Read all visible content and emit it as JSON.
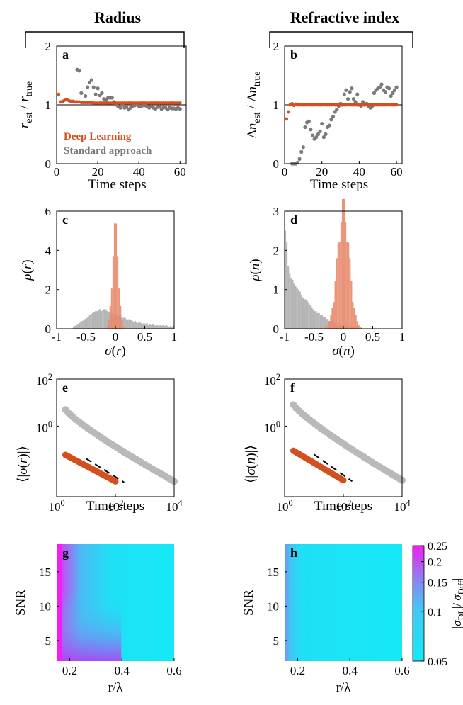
{
  "column_titles": {
    "left": "Radius",
    "right": "Refractive index"
  },
  "colors": {
    "deep_learning": "#d2501e",
    "deep_learning_hist": "#e8896b",
    "standard": "#7a7a7a",
    "standard_light": "#b9b9b9",
    "standard_hist": "#a8a8a8",
    "heat_low": "#16e9f5",
    "heat_high": "#f21ef2"
  },
  "chart_data": [
    {
      "panel": "a",
      "type": "scatter",
      "xlabel": "Time steps",
      "ylabel": "r_est / r_true",
      "xlim": [
        0,
        60
      ],
      "ylim": [
        0,
        2
      ],
      "xticks": [
        "0",
        "20",
        "40",
        "60"
      ],
      "yticks": [
        "0",
        "1",
        "2"
      ],
      "legend": {
        "placement": "bottom-left",
        "entries": [
          "Deep Learning",
          "Standard approach"
        ]
      },
      "series": [
        {
          "name": "Deep Learning",
          "x": [
            1,
            2,
            3,
            4,
            5,
            6,
            7,
            8,
            9,
            10,
            11,
            12,
            13,
            14,
            15,
            16,
            17,
            18,
            19,
            20,
            21,
            22,
            23,
            24,
            25,
            26,
            27,
            28,
            29,
            30,
            31,
            32,
            33,
            34,
            35,
            36,
            37,
            38,
            39,
            40,
            41,
            42,
            43,
            44,
            45,
            46,
            47,
            48,
            49,
            50,
            51,
            52,
            53,
            54,
            55,
            56,
            57,
            58,
            59,
            60
          ],
          "y": [
            1.18,
            1.05,
            1.06,
            1.08,
            1.09,
            1.07,
            1.06,
            1.06,
            1.05,
            1.05,
            1.05,
            1.04,
            1.04,
            1.04,
            1.04,
            1.04,
            1.04,
            1.03,
            1.03,
            1.03,
            1.03,
            1.03,
            1.03,
            1.03,
            1.03,
            1.03,
            1.03,
            1.03,
            1.03,
            1.03,
            1.03,
            1.03,
            1.03,
            1.03,
            1.03,
            1.03,
            1.03,
            1.03,
            1.03,
            1.03,
            1.03,
            1.03,
            1.03,
            1.03,
            1.03,
            1.03,
            1.03,
            1.03,
            1.03,
            1.03,
            1.03,
            1.03,
            1.03,
            1.03,
            1.03,
            1.03,
            1.03,
            1.03,
            1.03,
            1.03
          ]
        },
        {
          "name": "Standard approach",
          "x": [
            10,
            11,
            12,
            14,
            15,
            16,
            17,
            18,
            19,
            20,
            21,
            22,
            23,
            24,
            25,
            26,
            27,
            28,
            29,
            30,
            31,
            32,
            33,
            34,
            35,
            36,
            37,
            38,
            39,
            40,
            41,
            42,
            43,
            44,
            45,
            46,
            47,
            48,
            49,
            50,
            51,
            52,
            53,
            54,
            55,
            56,
            57,
            58,
            59,
            60
          ],
          "y": [
            1.6,
            1.58,
            1.2,
            1.15,
            1.3,
            1.38,
            1.42,
            1.3,
            1.18,
            1.28,
            1.16,
            1.2,
            1.1,
            1.08,
            1.12,
            1.12,
            1.12,
            1.05,
            1.0,
            0.97,
            0.95,
            1.0,
            0.95,
            0.96,
            0.92,
            0.95,
            0.98,
            0.99,
            1.02,
            0.98,
            0.97,
            0.99,
            0.99,
            0.97,
            0.95,
            0.97,
            0.95,
            0.93,
            0.96,
            0.97,
            0.93,
            0.96,
            0.95,
            0.92,
            0.95,
            0.94,
            0.94,
            0.93,
            0.95,
            0.93
          ]
        }
      ]
    },
    {
      "panel": "b",
      "type": "scatter",
      "xlabel": "Time steps",
      "ylabel": "Δn_est / Δn_true",
      "xlim": [
        0,
        60
      ],
      "ylim": [
        0,
        2
      ],
      "xticks": [
        "0",
        "20",
        "40",
        "60"
      ],
      "yticks": [
        "0",
        "1",
        "2"
      ],
      "series": [
        {
          "name": "Deep Learning",
          "x": [
            1,
            2,
            3,
            4,
            5,
            6,
            7,
            8,
            9,
            10,
            11,
            12,
            13,
            14,
            15,
            16,
            17,
            18,
            19,
            20,
            21,
            22,
            23,
            24,
            25,
            26,
            27,
            28,
            29,
            30,
            31,
            32,
            33,
            34,
            35,
            36,
            37,
            38,
            39,
            40,
            41,
            42,
            43,
            44,
            45,
            46,
            47,
            48,
            49,
            50,
            51,
            52,
            53,
            54,
            55,
            56,
            57,
            58,
            59,
            60
          ],
          "y": [
            0.76,
            0.88,
            1.0,
            1.02,
            0.99,
            1.01,
            1.0,
            1.0,
            1.0,
            1.0,
            1.0,
            1.0,
            1.0,
            1.0,
            1.0,
            1.0,
            1.0,
            1.0,
            1.0,
            1.0,
            1.0,
            1.0,
            1.0,
            1.0,
            1.0,
            1.0,
            1.0,
            1.0,
            1.0,
            1.0,
            1.0,
            1.0,
            1.0,
            1.0,
            1.0,
            1.0,
            1.0,
            1.0,
            1.0,
            1.0,
            1.0,
            1.0,
            1.0,
            1.0,
            1.0,
            1.0,
            1.0,
            1.0,
            1.0,
            1.0,
            1.0,
            1.0,
            1.0,
            1.0,
            1.0,
            1.0,
            1.0,
            1.0,
            1.0,
            1.0
          ]
        },
        {
          "name": "Standard approach",
          "x": [
            4,
            5,
            6,
            7,
            8,
            9,
            10,
            11,
            12,
            13,
            14,
            15,
            16,
            17,
            18,
            19,
            20,
            21,
            22,
            23,
            24,
            25,
            26,
            27,
            28,
            29,
            30,
            31,
            32,
            33,
            34,
            35,
            36,
            37,
            38,
            39,
            40,
            41,
            42,
            43,
            44,
            45,
            46,
            47,
            48,
            49,
            50,
            51,
            52,
            53,
            54,
            55,
            56,
            57,
            58,
            59,
            60
          ],
          "y": [
            0.0,
            0.0,
            0.0,
            0.02,
            0.08,
            0.2,
            0.28,
            0.62,
            0.7,
            0.72,
            0.58,
            0.48,
            0.42,
            0.45,
            0.5,
            0.55,
            0.68,
            0.45,
            0.5,
            0.62,
            0.65,
            0.75,
            0.8,
            0.88,
            0.92,
            0.98,
            1.02,
            1.0,
            1.18,
            1.25,
            1.1,
            1.22,
            1.28,
            1.1,
            1.05,
            1.18,
            1.0,
            0.98,
            1.05,
            1.0,
            1.02,
            0.98,
            0.95,
            0.98,
            1.2,
            1.25,
            1.28,
            1.3,
            1.35,
            1.25,
            1.22,
            1.3,
            1.28,
            1.15,
            1.2,
            1.25,
            1.3
          ]
        }
      ]
    },
    {
      "panel": "c",
      "type": "histogram",
      "xlabel": "σ(r)",
      "ylabel": "ρ(r)",
      "xlim": [
        -1,
        1
      ],
      "ylim": [
        0,
        6
      ],
      "xticks": [
        "-1",
        "-0.5",
        "0",
        "0.5",
        "1"
      ],
      "yticks": [
        "0",
        "2",
        "4",
        "6"
      ],
      "series": [
        {
          "name": "Deep Learning",
          "center": 0.0,
          "width": 0.05,
          "peak": 4.9
        },
        {
          "name": "Standard approach",
          "bins_from": -1,
          "bin_width": 0.025,
          "values": [
            0,
            0,
            0,
            0,
            0,
            0,
            0,
            0,
            0,
            0,
            0,
            0.1,
            0.15,
            0.2,
            0.25,
            0.3,
            0.35,
            0.4,
            0.45,
            0.5,
            0.55,
            0.6,
            0.7,
            0.75,
            0.8,
            0.85,
            0.9,
            0.9,
            0.95,
            1.0,
            0.9,
            0.95,
            1.0,
            1.0,
            0.9,
            0.85,
            0.8,
            0.8,
            0.75,
            0.7,
            0.75,
            0.7,
            0.65,
            0.7,
            0.6,
            0.55,
            0.6,
            0.5,
            0.45,
            0.5,
            0.45,
            0.4,
            0.35,
            0.4,
            0.35,
            0.3,
            0.35,
            0.3,
            0.25,
            0.3,
            0.25,
            0.3,
            0.2,
            0.25,
            0.2,
            0.25,
            0.2,
            0.15,
            0.2,
            0.15,
            0.2,
            0.15,
            0.2,
            0.15,
            0.2,
            0.15,
            0.1,
            0.15,
            0.1,
            0.15
          ]
        }
      ]
    },
    {
      "panel": "d",
      "type": "histogram",
      "xlabel": "σ(n)",
      "ylabel": "ρ(n)",
      "xlim": [
        -1,
        1
      ],
      "ylim": [
        0,
        3
      ],
      "xticks": [
        "-1",
        "-0.5",
        "0",
        "0.5",
        "1"
      ],
      "yticks": [
        "0",
        "1",
        "2",
        "3"
      ],
      "series": [
        {
          "name": "Deep Learning",
          "center": 0.0,
          "width": 0.1,
          "peak": 2.95
        },
        {
          "name": "Standard approach",
          "bins_from": -1,
          "bin_width": 0.025,
          "values": [
            2.5,
            2.2,
            1.6,
            1.4,
            1.3,
            1.25,
            1.15,
            1.1,
            1.05,
            1.0,
            0.95,
            0.85,
            0.8,
            0.75,
            0.75,
            0.7,
            0.65,
            0.6,
            0.55,
            0.5,
            0.45,
            0.45,
            0.4,
            0.4,
            0.35,
            0.35,
            0.3,
            0.3,
            0.25,
            0.25,
            0.2,
            0.2,
            0.2,
            0.15,
            0.15,
            0.1,
            0.15,
            0.1,
            0.1,
            0.1,
            0.05,
            0.1,
            0.05,
            0.05,
            0.05,
            0.1,
            0.05,
            0.05,
            0.05,
            0.05,
            0,
            0,
            0,
            0,
            0,
            0,
            0,
            0,
            0,
            0,
            0,
            0,
            0,
            0,
            0,
            0,
            0,
            0,
            0,
            0,
            0,
            0,
            0,
            0,
            0,
            0,
            0,
            0,
            0,
            0
          ]
        }
      ]
    },
    {
      "panel": "e",
      "type": "scatter",
      "xlabel": "Time steps",
      "ylabel": "⟨|σ(r)|⟩",
      "xscale": "log",
      "yscale": "log",
      "xticks": [
        "10^0",
        "10^2",
        "10^4"
      ],
      "yticks": [
        "10^0",
        "10^2"
      ],
      "series": [
        {
          "name": "Standard approach",
          "x_from": 2,
          "x_to": 10000,
          "y_from": 5,
          "y_to": 0.0045
        },
        {
          "name": "Deep Learning",
          "x_from": 2,
          "x_to": 100,
          "y_from": 0.06,
          "y_to": 0.0045
        }
      ],
      "reference_line": {
        "style": "dashed",
        "x_from": 10,
        "x_to": 200
      }
    },
    {
      "panel": "f",
      "type": "scatter",
      "xlabel": "Time steps",
      "ylabel": "⟨|σ(n)|⟩",
      "xscale": "log",
      "yscale": "log",
      "xticks": [
        "10^0",
        "10^2",
        "10^4"
      ],
      "yticks": [
        "10^0",
        "10^2"
      ],
      "series": [
        {
          "name": "Standard approach",
          "x_from": 2,
          "x_to": 10000,
          "y_from": 8,
          "y_to": 0.005
        },
        {
          "name": "Deep Learning",
          "x_from": 2,
          "x_to": 100,
          "y_from": 0.09,
          "y_to": 0.005
        }
      ],
      "reference_line": {
        "style": "dashed",
        "x_from": 10,
        "x_to": 200
      }
    },
    {
      "panel": "g",
      "type": "heatmap",
      "xlabel": "r/λ",
      "ylabel": "SNR",
      "xlim": [
        0.15,
        0.6
      ],
      "ylim": [
        2,
        19
      ],
      "xticks": [
        "0.2",
        "0.4",
        "0.6"
      ],
      "yticks": [
        "5",
        "10",
        "15"
      ]
    },
    {
      "panel": "h",
      "type": "heatmap",
      "xlabel": "r/λ",
      "ylabel": "SNR",
      "xlim": [
        0.15,
        0.6
      ],
      "ylim": [
        2,
        19
      ],
      "xticks": [
        "0.2",
        "0.4",
        "0.6"
      ],
      "yticks": [
        "5",
        "10",
        "15"
      ],
      "colorbar": {
        "label": "|σ_DL|/|σ_Diff|",
        "scale": "log",
        "range": [
          0.05,
          0.25
        ],
        "ticks": [
          "0.25",
          "0.2",
          "0.15",
          "0.1",
          "0.05"
        ]
      }
    }
  ]
}
